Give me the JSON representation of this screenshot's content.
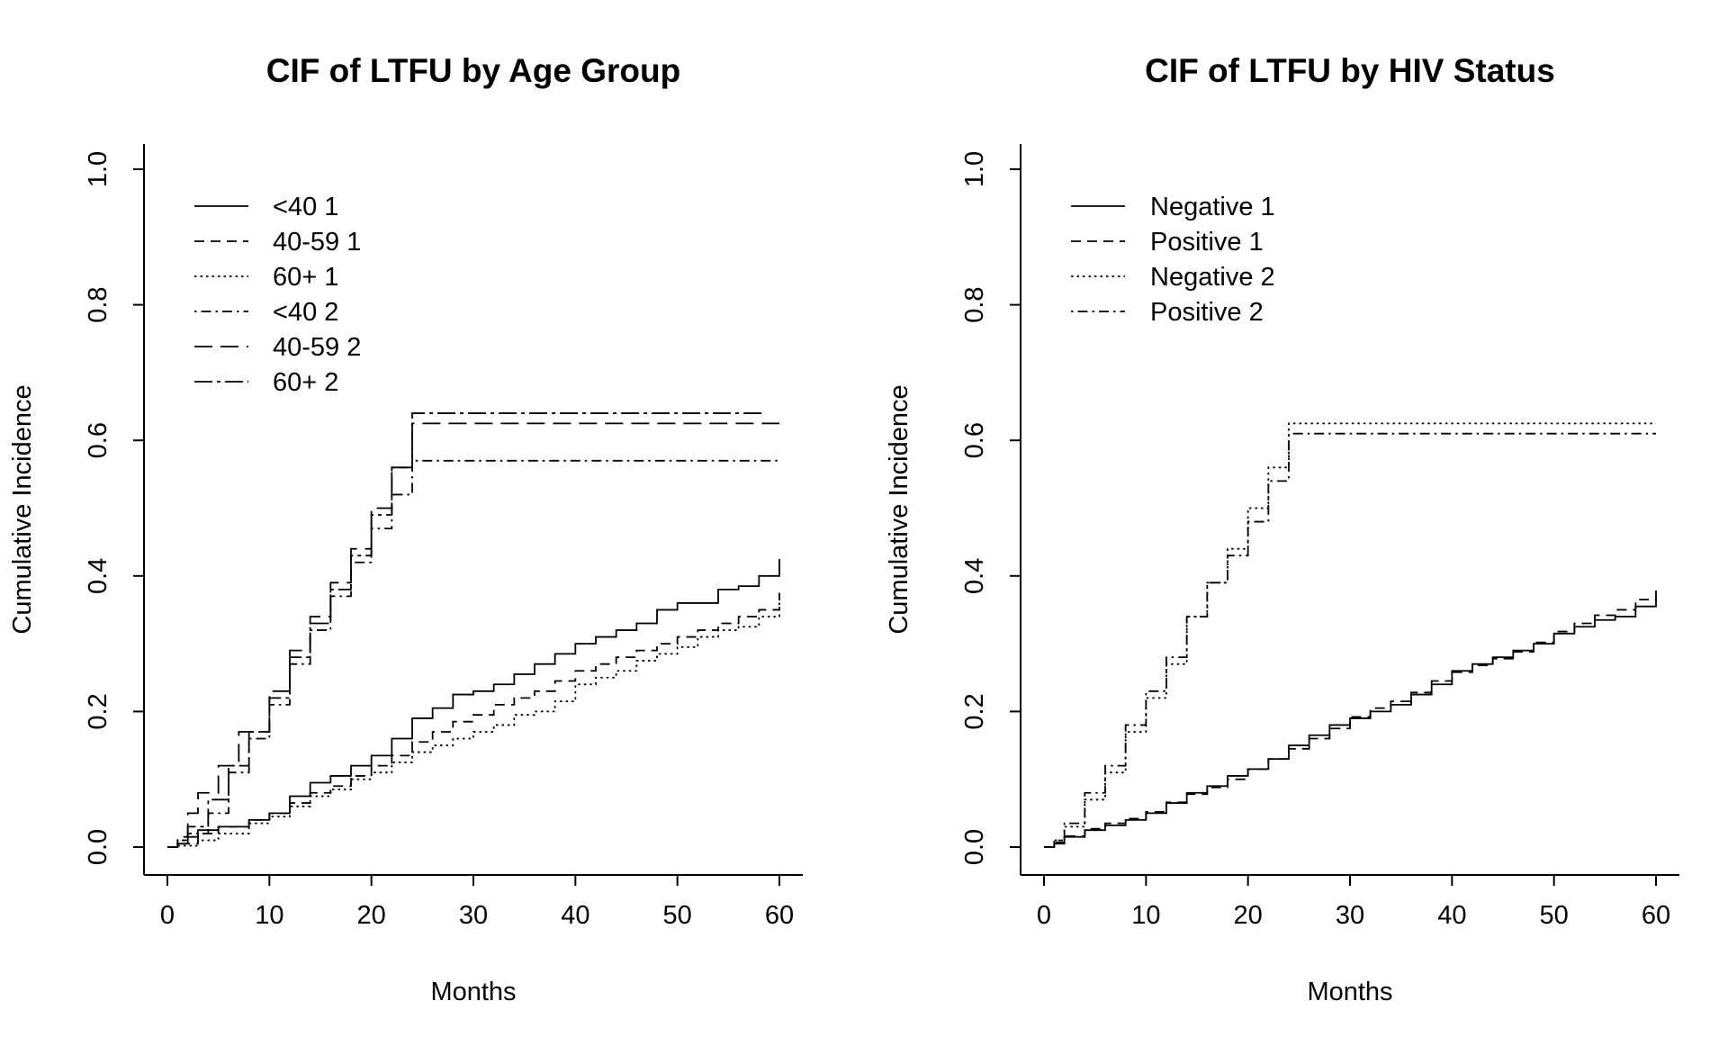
{
  "chart_data": [
    {
      "type": "line",
      "step": true,
      "title": "CIF of LTFU by Age Group",
      "xlabel": "Months",
      "ylabel": "Cumulative Incidence",
      "xlim": [
        0,
        60
      ],
      "ylim": [
        0,
        1
      ],
      "xticks": [
        "0",
        "10",
        "20",
        "30",
        "40",
        "50",
        "60"
      ],
      "yticks": [
        "0.0",
        "0.2",
        "0.4",
        "0.6",
        "0.8",
        "1.0"
      ],
      "grid": false,
      "legend_position": "top-left",
      "series": [
        {
          "name": "<40 1",
          "dash": "solid",
          "x": [
            0,
            1,
            2,
            3,
            5,
            8,
            10,
            12,
            14,
            16,
            18,
            20,
            22,
            24,
            26,
            28,
            30,
            32,
            34,
            36,
            38,
            40,
            42,
            44,
            46,
            48,
            50,
            52,
            54,
            56,
            58,
            60
          ],
          "y": [
            0,
            0.005,
            0.015,
            0.025,
            0.03,
            0.04,
            0.05,
            0.075,
            0.095,
            0.105,
            0.12,
            0.135,
            0.16,
            0.19,
            0.205,
            0.225,
            0.23,
            0.24,
            0.255,
            0.27,
            0.285,
            0.3,
            0.31,
            0.32,
            0.33,
            0.35,
            0.36,
            0.36,
            0.38,
            0.385,
            0.4,
            0.425
          ]
        },
        {
          "name": "40-59 1",
          "dash": "dashed",
          "x": [
            0,
            1,
            3,
            5,
            8,
            10,
            12,
            14,
            16,
            18,
            20,
            22,
            24,
            26,
            28,
            30,
            32,
            34,
            36,
            38,
            40,
            42,
            44,
            46,
            48,
            50,
            52,
            54,
            56,
            58,
            60
          ],
          "y": [
            0,
            0.005,
            0.02,
            0.03,
            0.04,
            0.05,
            0.065,
            0.08,
            0.09,
            0.105,
            0.12,
            0.135,
            0.155,
            0.17,
            0.185,
            0.195,
            0.21,
            0.22,
            0.23,
            0.245,
            0.26,
            0.27,
            0.28,
            0.29,
            0.3,
            0.31,
            0.32,
            0.33,
            0.34,
            0.35,
            0.375
          ]
        },
        {
          "name": "60+ 1",
          "dash": "dotted",
          "x": [
            0,
            1,
            3,
            5,
            8,
            10,
            12,
            14,
            16,
            18,
            20,
            22,
            24,
            26,
            28,
            30,
            32,
            34,
            36,
            38,
            40,
            42,
            44,
            46,
            48,
            50,
            52,
            54,
            56,
            58,
            60
          ],
          "y": [
            0,
            0.002,
            0.01,
            0.02,
            0.035,
            0.045,
            0.06,
            0.075,
            0.085,
            0.1,
            0.11,
            0.125,
            0.14,
            0.15,
            0.16,
            0.17,
            0.18,
            0.195,
            0.2,
            0.215,
            0.24,
            0.25,
            0.26,
            0.275,
            0.285,
            0.295,
            0.31,
            0.32,
            0.325,
            0.34,
            0.365
          ]
        },
        {
          "name": "<40 2",
          "dash": "dot-dash",
          "x": [
            0,
            1,
            2,
            4,
            6,
            8,
            10,
            12,
            14,
            16,
            18,
            20,
            22,
            24,
            26,
            30,
            40,
            50,
            60
          ],
          "y": [
            0,
            0.01,
            0.02,
            0.05,
            0.11,
            0.16,
            0.21,
            0.27,
            0.32,
            0.37,
            0.42,
            0.47,
            0.52,
            0.57,
            0.57,
            0.57,
            0.57,
            0.57,
            0.57
          ]
        },
        {
          "name": "40-59 2",
          "dash": "long-dash",
          "x": [
            0,
            1,
            2,
            3,
            5,
            7,
            10,
            12,
            14,
            16,
            18,
            20,
            22,
            24,
            26,
            30,
            40,
            50,
            60
          ],
          "y": [
            0,
            0.015,
            0.05,
            0.08,
            0.12,
            0.17,
            0.23,
            0.29,
            0.34,
            0.39,
            0.44,
            0.5,
            0.56,
            0.625,
            0.625,
            0.625,
            0.625,
            0.625,
            0.625
          ]
        },
        {
          "name": "60+ 2",
          "dash": "two-dash",
          "x": [
            0,
            1,
            2,
            4,
            6,
            8,
            10,
            12,
            14,
            16,
            18,
            20,
            22,
            24,
            26,
            30,
            40,
            50,
            58.5
          ],
          "y": [
            0,
            0.01,
            0.03,
            0.07,
            0.12,
            0.17,
            0.22,
            0.28,
            0.33,
            0.38,
            0.43,
            0.49,
            0.56,
            0.64,
            0.64,
            0.64,
            0.64,
            0.64,
            0.64
          ]
        }
      ]
    },
    {
      "type": "line",
      "step": true,
      "title": "CIF of LTFU by HIV Status",
      "xlabel": "Months",
      "ylabel": "Cumulative Incidence",
      "xlim": [
        0,
        60
      ],
      "ylim": [
        0,
        1
      ],
      "xticks": [
        "0",
        "10",
        "20",
        "30",
        "40",
        "50",
        "60"
      ],
      "yticks": [
        "0.0",
        "0.2",
        "0.4",
        "0.6",
        "0.8",
        "1.0"
      ],
      "grid": false,
      "legend_position": "top-left",
      "series": [
        {
          "name": "Negative 1",
          "dash": "solid",
          "x": [
            0,
            1,
            2,
            4,
            6,
            8,
            10,
            12,
            14,
            16,
            18,
            20,
            22,
            24,
            26,
            28,
            30,
            32,
            34,
            36,
            38,
            40,
            42,
            44,
            46,
            48,
            50,
            52,
            54,
            56,
            58,
            60
          ],
          "y": [
            0,
            0.005,
            0.015,
            0.025,
            0.032,
            0.04,
            0.05,
            0.065,
            0.08,
            0.09,
            0.105,
            0.115,
            0.13,
            0.15,
            0.165,
            0.18,
            0.19,
            0.2,
            0.21,
            0.225,
            0.24,
            0.26,
            0.27,
            0.28,
            0.29,
            0.3,
            0.315,
            0.325,
            0.335,
            0.34,
            0.355,
            0.37
          ]
        },
        {
          "name": "Positive 1",
          "dash": "dashed",
          "x": [
            0,
            1,
            2,
            4,
            6,
            8,
            10,
            12,
            14,
            16,
            18,
            20,
            22,
            24,
            26,
            28,
            30,
            32,
            34,
            36,
            38,
            40,
            42,
            44,
            46,
            48,
            50,
            52,
            54,
            56,
            58,
            60
          ],
          "y": [
            0,
            0.007,
            0.016,
            0.027,
            0.035,
            0.042,
            0.052,
            0.066,
            0.078,
            0.088,
            0.1,
            0.115,
            0.13,
            0.145,
            0.16,
            0.175,
            0.192,
            0.205,
            0.215,
            0.228,
            0.245,
            0.258,
            0.268,
            0.278,
            0.288,
            0.302,
            0.318,
            0.33,
            0.342,
            0.35,
            0.365,
            0.385
          ]
        },
        {
          "name": "Negative 2",
          "dash": "dotted",
          "x": [
            0,
            1,
            2,
            4,
            6,
            8,
            10,
            12,
            14,
            16,
            18,
            20,
            22,
            24,
            26,
            30,
            40,
            50,
            60
          ],
          "y": [
            0,
            0.01,
            0.03,
            0.07,
            0.11,
            0.17,
            0.22,
            0.27,
            0.34,
            0.39,
            0.44,
            0.5,
            0.56,
            0.625,
            0.625,
            0.625,
            0.625,
            0.625,
            0.625
          ]
        },
        {
          "name": "Positive 2",
          "dash": "dot-dash",
          "x": [
            0,
            1,
            2,
            4,
            6,
            8,
            10,
            12,
            14,
            16,
            18,
            20,
            22,
            24,
            26,
            30,
            40,
            50,
            60
          ],
          "y": [
            0,
            0.01,
            0.035,
            0.08,
            0.12,
            0.18,
            0.23,
            0.28,
            0.34,
            0.39,
            0.43,
            0.48,
            0.54,
            0.61,
            0.61,
            0.61,
            0.61,
            0.61,
            0.61
          ]
        }
      ]
    }
  ]
}
